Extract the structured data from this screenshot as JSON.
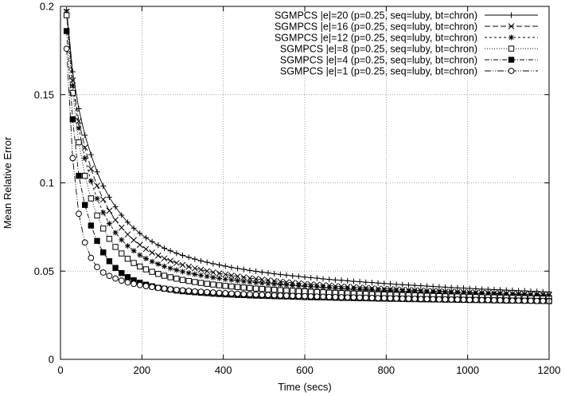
{
  "chart_data": {
    "type": "line",
    "title": "",
    "xlabel": "Time (secs)",
    "ylabel": "Mean Relative Error",
    "xlim": [
      0,
      1200
    ],
    "ylim": [
      0,
      0.2
    ],
    "xticks": [
      0,
      200,
      400,
      600,
      800,
      1000,
      1200
    ],
    "yticks": [
      0,
      0.05,
      0.1,
      0.15,
      0.2
    ],
    "xtick_labels": [
      "0",
      "200",
      "400",
      "600",
      "800",
      "1000",
      "1200"
    ],
    "ytick_labels": [
      "0",
      "0.05",
      "0.1",
      "0.15",
      "0.2"
    ],
    "grid": true,
    "legend_position": "top-right",
    "x": [
      15,
      30,
      45,
      60,
      75,
      90,
      105,
      120,
      135,
      150,
      165,
      180,
      195,
      210,
      225,
      240,
      255,
      270,
      285,
      300,
      315,
      330,
      345,
      360,
      375,
      390,
      405,
      420,
      435,
      450,
      465,
      480,
      495,
      510,
      525,
      540,
      555,
      570,
      585,
      600,
      615,
      630,
      645,
      660,
      675,
      690,
      705,
      720,
      735,
      750,
      765,
      780,
      795,
      810,
      825,
      840,
      855,
      870,
      885,
      900,
      915,
      930,
      945,
      960,
      975,
      990,
      1005,
      1020,
      1035,
      1050,
      1065,
      1080,
      1095,
      1110,
      1125,
      1140,
      1155,
      1170,
      1185,
      1200
    ],
    "series": [
      {
        "name": "SGMPCS |e|=20 (p=0.25, seq=luby, bt=chron)",
        "marker": "plus",
        "dash": "",
        "values": [
          0.198,
          0.163,
          0.142,
          0.127,
          0.116,
          0.1062,
          0.0982,
          0.0918,
          0.0864,
          0.0817,
          0.0777,
          0.0743,
          0.0714,
          0.0689,
          0.0667,
          0.0647,
          0.063,
          0.0615,
          0.0601,
          0.0589,
          0.0578,
          0.0568,
          0.0558,
          0.055,
          0.0542,
          0.0535,
          0.0528,
          0.0521,
          0.0515,
          0.051,
          0.0504,
          0.0499,
          0.0494,
          0.049,
          0.0485,
          0.0481,
          0.0477,
          0.0473,
          0.047,
          0.0466,
          0.0463,
          0.046,
          0.0456,
          0.0453,
          0.045,
          0.0448,
          0.0445,
          0.0442,
          0.044,
          0.0437,
          0.0435,
          0.0432,
          0.043,
          0.0428,
          0.0425,
          0.0423,
          0.0421,
          0.0419,
          0.0417,
          0.0415,
          0.0413,
          0.0411,
          0.0409,
          0.0407,
          0.0405,
          0.0404,
          0.0402,
          0.04,
          0.0398,
          0.0397,
          0.0395,
          0.0394,
          0.0392,
          0.0391,
          0.0389,
          0.0388,
          0.0386,
          0.0385,
          0.0383,
          0.0382
        ]
      },
      {
        "name": "SGMPCS |e|=16 (p=0.25, seq=luby, bt=chron)",
        "marker": "x",
        "dash": "7,3",
        "values": [
          0.197,
          0.158,
          0.135,
          0.12,
          0.108,
          0.0984,
          0.0906,
          0.0842,
          0.079,
          0.0746,
          0.0708,
          0.0676,
          0.0649,
          0.0625,
          0.0605,
          0.0588,
          0.0572,
          0.0558,
          0.0546,
          0.0535,
          0.0525,
          0.0516,
          0.0508,
          0.05,
          0.0493,
          0.0487,
          0.0481,
          0.0475,
          0.047,
          0.0465,
          0.046,
          0.0456,
          0.0452,
          0.0448,
          0.0444,
          0.0441,
          0.0437,
          0.0434,
          0.0431,
          0.0428,
          0.0425,
          0.0423,
          0.042,
          0.0418,
          0.0415,
          0.0413,
          0.0411,
          0.0409,
          0.0407,
          0.0405,
          0.0403,
          0.0401,
          0.0399,
          0.0398,
          0.0396,
          0.0394,
          0.0393,
          0.0391,
          0.039,
          0.0388,
          0.0387,
          0.0386,
          0.0384,
          0.0383,
          0.0382,
          0.0381,
          0.0379,
          0.0378,
          0.0377,
          0.0376,
          0.0375,
          0.0374,
          0.0373,
          0.0372,
          0.0371,
          0.037,
          0.0369,
          0.0368,
          0.0367,
          0.0366
        ]
      },
      {
        "name": "SGMPCS |e|=12 (p=0.25, seq=luby, bt=chron)",
        "marker": "star",
        "dash": "3,3",
        "values": [
          0.196,
          0.155,
          0.131,
          0.114,
          0.101,
          0.0911,
          0.0832,
          0.0769,
          0.0718,
          0.0677,
          0.0643,
          0.0615,
          0.0591,
          0.0571,
          0.0554,
          0.054,
          0.0527,
          0.0516,
          0.0506,
          0.0497,
          0.0489,
          0.0482,
          0.0476,
          0.047,
          0.0464,
          0.0459,
          0.0454,
          0.045,
          0.0446,
          0.0442,
          0.0438,
          0.0435,
          0.0432,
          0.0429,
          0.0426,
          0.0423,
          0.0421,
          0.0418,
          0.0416,
          0.0414,
          0.0412,
          0.041,
          0.0408,
          0.0406,
          0.0404,
          0.0402,
          0.04,
          0.0399,
          0.0397,
          0.0396,
          0.0394,
          0.0393,
          0.0391,
          0.039,
          0.0389,
          0.0387,
          0.0386,
          0.0385,
          0.0384,
          0.0382,
          0.0381,
          0.038,
          0.0379,
          0.0378,
          0.0377,
          0.0376,
          0.0375,
          0.0374,
          0.0373,
          0.0372,
          0.0371,
          0.037,
          0.0369,
          0.0368,
          0.0367,
          0.0366,
          0.0365,
          0.0364,
          0.0363,
          0.0362
        ]
      },
      {
        "name": "SGMPCS |e|=8 (p=0.25, seq=luby, bt=chron)",
        "marker": "square-open",
        "dash": "1,2",
        "values": [
          0.195,
          0.151,
          0.123,
          0.104,
          0.0912,
          0.0815,
          0.0741,
          0.0683,
          0.0637,
          0.06,
          0.057,
          0.0546,
          0.0526,
          0.051,
          0.0496,
          0.0484,
          0.0474,
          0.0465,
          0.0457,
          0.045,
          0.0444,
          0.0438,
          0.0433,
          0.0428,
          0.0424,
          0.042,
          0.0416,
          0.0413,
          0.041,
          0.0407,
          0.0404,
          0.0401,
          0.0399,
          0.0396,
          0.0394,
          0.0392,
          0.039,
          0.0388,
          0.0386,
          0.0385,
          0.0383,
          0.0381,
          0.038,
          0.0378,
          0.0377,
          0.0376,
          0.0374,
          0.0373,
          0.0372,
          0.0371,
          0.0369,
          0.0368,
          0.0367,
          0.0366,
          0.0365,
          0.0364,
          0.0363,
          0.0362,
          0.0361,
          0.036,
          0.0359,
          0.0358,
          0.0357,
          0.0356,
          0.0356,
          0.0355,
          0.0354,
          0.0353,
          0.0352,
          0.0351,
          0.0351,
          0.035,
          0.0349,
          0.0348,
          0.0347,
          0.0347,
          0.0346,
          0.0345,
          0.0344,
          0.0344
        ]
      },
      {
        "name": "SGMPCS |e|=4 (p=0.25, seq=luby, bt=chron)",
        "marker": "square-filled",
        "dash": "6,2,1,2",
        "values": [
          0.186,
          0.136,
          0.104,
          0.0875,
          0.0758,
          0.0671,
          0.0606,
          0.0556,
          0.0518,
          0.0489,
          0.0466,
          0.0448,
          0.0434,
          0.0423,
          0.0414,
          0.0406,
          0.04,
          0.0395,
          0.039,
          0.0386,
          0.0383,
          0.038,
          0.0377,
          0.0375,
          0.0372,
          0.037,
          0.0368,
          0.0367,
          0.0365,
          0.0364,
          0.0362,
          0.0361,
          0.036,
          0.0359,
          0.0358,
          0.0357,
          0.0356,
          0.0355,
          0.0354,
          0.0353,
          0.0352,
          0.0351,
          0.0351,
          0.035,
          0.0349,
          0.0348,
          0.0348,
          0.0347,
          0.0346,
          0.0346,
          0.0345,
          0.0344,
          0.0344,
          0.0343,
          0.0343,
          0.0342,
          0.0341,
          0.0341,
          0.034,
          0.034,
          0.0339,
          0.0339,
          0.0338,
          0.0338,
          0.0337,
          0.0337,
          0.0336,
          0.0336,
          0.0335,
          0.0335,
          0.0334,
          0.0334,
          0.0333,
          0.0333,
          0.0333,
          0.0332,
          0.0332,
          0.0331,
          0.0331,
          0.033
        ]
      },
      {
        "name": "SGMPCS |e|=1 (p=0.25, seq=luby, bt=chron)",
        "marker": "circle-open",
        "dash": "8,2,1,2,1,2",
        "values": [
          0.176,
          0.114,
          0.0825,
          0.0662,
          0.0575,
          0.0523,
          0.0492,
          0.0473,
          0.0458,
          0.0446,
          0.0436,
          0.0428,
          0.0421,
          0.0415,
          0.041,
          0.0405,
          0.0401,
          0.0397,
          0.0394,
          0.0391,
          0.0388,
          0.0385,
          0.0383,
          0.0381,
          0.0379,
          0.0377,
          0.0375,
          0.0373,
          0.0372,
          0.037,
          0.0369,
          0.0367,
          0.0366,
          0.0365,
          0.0363,
          0.0362,
          0.0361,
          0.036,
          0.0359,
          0.0358,
          0.0357,
          0.0356,
          0.0355,
          0.0354,
          0.0353,
          0.0352,
          0.0351,
          0.0351,
          0.035,
          0.0349,
          0.0348,
          0.0347,
          0.0347,
          0.0346,
          0.0345,
          0.0344,
          0.0344,
          0.0343,
          0.0342,
          0.0342,
          0.0341,
          0.034,
          0.034,
          0.0339,
          0.0339,
          0.0338,
          0.0337,
          0.0337,
          0.0336,
          0.0336,
          0.0335,
          0.0335,
          0.0334,
          0.0333,
          0.0333,
          0.0332,
          0.0332,
          0.0331,
          0.0331,
          0.033
        ]
      }
    ]
  }
}
